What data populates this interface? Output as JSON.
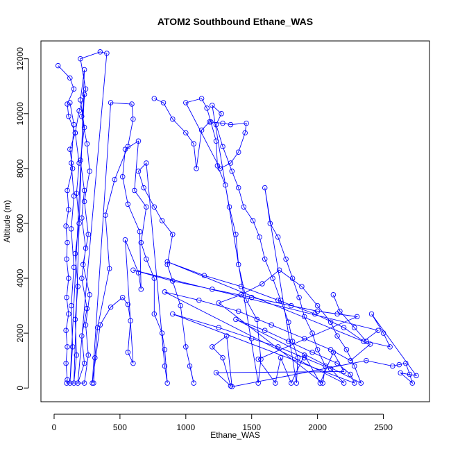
{
  "chart_data": {
    "type": "scatter",
    "title": "ATOM2 Southbound Ethane_WAS",
    "xlabel": "Ethane_WAS",
    "ylabel": "Altitude (m)",
    "xlim": [
      -100,
      2850
    ],
    "ylim": [
      -500,
      12650
    ],
    "x_ticks": [
      0,
      500,
      1000,
      1500,
      2000,
      2500
    ],
    "y_ticks": [
      0,
      2000,
      4000,
      6000,
      8000,
      10000,
      12000
    ],
    "x_tick_labels": [
      "0",
      "500",
      "1000",
      "1500",
      "2000",
      "2500"
    ],
    "y_tick_labels": [
      "0",
      "2000",
      "4000",
      "6000",
      "8000",
      "10000",
      "12000"
    ],
    "grid": false,
    "legend": "none",
    "marker": "open-circle",
    "connected": true,
    "color": "#0000ff",
    "series": [
      {
        "values": [
          [
            30,
            11750
          ],
          [
            120,
            11300
          ],
          [
            150,
            10900
          ],
          [
            100,
            10350
          ],
          [
            110,
            9900
          ],
          [
            160,
            9300
          ],
          [
            120,
            8700
          ],
          [
            140,
            8000
          ],
          [
            100,
            7200
          ],
          [
            110,
            6500
          ],
          [
            90,
            5900
          ],
          [
            100,
            5300
          ],
          [
            95,
            4700
          ],
          [
            110,
            4000
          ],
          [
            95,
            3300
          ],
          [
            110,
            2700
          ],
          [
            90,
            2100
          ],
          [
            100,
            1500
          ],
          [
            90,
            900
          ],
          [
            100,
            300
          ],
          [
            95,
            180
          ],
          [
            230,
            180
          ],
          [
            260,
            1200
          ],
          [
            240,
            2300
          ],
          [
            270,
            3400
          ],
          [
            220,
            4500
          ],
          [
            260,
            5600
          ],
          [
            230,
            6800
          ],
          [
            270,
            7900
          ],
          [
            250,
            8900
          ],
          [
            210,
            9900
          ],
          [
            240,
            10900
          ],
          [
            200,
            12000
          ],
          [
            350,
            12250
          ],
          [
            400,
            12200
          ],
          [
            180,
            180
          ],
          [
            230,
            900
          ],
          [
            210,
            1900
          ],
          [
            250,
            2900
          ],
          [
            210,
            4000
          ],
          [
            240,
            5100
          ],
          [
            210,
            6200
          ],
          [
            230,
            7200
          ],
          [
            200,
            8300
          ],
          [
            230,
            9500
          ],
          [
            200,
            10500
          ],
          [
            230,
            11600
          ],
          [
            150,
            180
          ],
          [
            170,
            1200
          ],
          [
            160,
            2500
          ],
          [
            180,
            3700
          ],
          [
            160,
            4900
          ],
          [
            190,
            6000
          ],
          [
            170,
            7100
          ],
          [
            190,
            8200
          ],
          [
            160,
            9300
          ],
          [
            190,
            10100
          ],
          [
            230,
            10700
          ],
          [
            120,
            180
          ],
          [
            140,
            1500
          ],
          [
            130,
            3000
          ],
          [
            150,
            4400
          ],
          [
            130,
            5800
          ],
          [
            150,
            7000
          ],
          [
            130,
            8200
          ],
          [
            150,
            9600
          ],
          [
            120,
            10400
          ]
        ]
      },
      {
        "values": [
          [
            300,
            180
          ],
          [
            310,
            1100
          ],
          [
            330,
            2200
          ],
          [
            420,
            4350
          ],
          [
            390,
            6300
          ],
          [
            460,
            7600
          ],
          [
            560,
            8800
          ],
          [
            600,
            9800
          ],
          [
            590,
            10350
          ],
          [
            430,
            10400
          ],
          [
            290,
            180
          ],
          [
            350,
            2300
          ],
          [
            430,
            2950
          ],
          [
            520,
            3300
          ],
          [
            560,
            3050
          ],
          [
            580,
            2450
          ],
          [
            560,
            1300
          ],
          [
            600,
            900
          ],
          [
            540,
            5400
          ],
          [
            640,
            4200
          ],
          [
            660,
            3600
          ],
          [
            650,
            5700
          ],
          [
            560,
            6700
          ],
          [
            520,
            7700
          ],
          [
            540,
            8700
          ],
          [
            640,
            9000
          ],
          [
            610,
            7200
          ],
          [
            700,
            6600
          ],
          [
            660,
            5300
          ],
          [
            700,
            4700
          ],
          [
            760,
            4000
          ],
          [
            760,
            2700
          ],
          [
            820,
            2000
          ],
          [
            840,
            1400
          ],
          [
            860,
            180
          ],
          [
            840,
            800
          ],
          [
            700,
            8200
          ],
          [
            640,
            7900
          ],
          [
            680,
            7300
          ],
          [
            760,
            6600
          ],
          [
            820,
            6100
          ],
          [
            900,
            5600
          ],
          [
            860,
            4500
          ],
          [
            960,
            3000
          ],
          [
            1000,
            1500
          ],
          [
            1060,
            180
          ],
          [
            1030,
            800
          ]
        ]
      },
      {
        "values": [
          [
            760,
            10550
          ],
          [
            830,
            10400
          ],
          [
            900,
            9800
          ],
          [
            1000,
            9300
          ],
          [
            1060,
            8900
          ],
          [
            1080,
            8000
          ],
          [
            1120,
            9400
          ],
          [
            1180,
            9700
          ],
          [
            1280,
            9650
          ],
          [
            1340,
            9600
          ],
          [
            1460,
            9650
          ],
          [
            1450,
            9300
          ],
          [
            1400,
            8600
          ],
          [
            1340,
            8200
          ],
          [
            1260,
            8000
          ],
          [
            1000,
            10400
          ],
          [
            1120,
            10550
          ],
          [
            1160,
            10200
          ],
          [
            1190,
            9700
          ],
          [
            1230,
            9000
          ],
          [
            1240,
            8100
          ],
          [
            1300,
            7400
          ],
          [
            1330,
            6600
          ],
          [
            1380,
            5600
          ],
          [
            1400,
            4500
          ],
          [
            1460,
            3200
          ],
          [
            1540,
            2500
          ],
          [
            1570,
            1050
          ],
          [
            1550,
            180
          ],
          [
            1200,
            10300
          ],
          [
            1270,
            10000
          ],
          [
            1230,
            9600
          ],
          [
            1280,
            8800
          ],
          [
            1350,
            7900
          ],
          [
            1400,
            7300
          ],
          [
            1440,
            6600
          ],
          [
            1510,
            6100
          ],
          [
            1560,
            5500
          ],
          [
            1600,
            4700
          ],
          [
            1660,
            4000
          ],
          [
            1720,
            3200
          ],
          [
            1780,
            2400
          ],
          [
            1810,
            1700
          ],
          [
            1850,
            1100
          ],
          [
            1840,
            180
          ],
          [
            1600,
            7300
          ],
          [
            1640,
            6000
          ],
          [
            1700,
            5500
          ],
          [
            1760,
            4700
          ],
          [
            1810,
            4000
          ],
          [
            1860,
            3300
          ],
          [
            1900,
            2600
          ],
          [
            1960,
            2000
          ],
          [
            2000,
            1400
          ],
          [
            2060,
            800
          ],
          [
            2040,
            180
          ],
          [
            1250,
            3100
          ],
          [
            1420,
            3400
          ],
          [
            1580,
            3800
          ],
          [
            1710,
            4300
          ],
          [
            1880,
            3700
          ],
          [
            2000,
            3000
          ],
          [
            2100,
            2400
          ],
          [
            2150,
            1900
          ],
          [
            2220,
            1400
          ],
          [
            2280,
            800
          ],
          [
            2330,
            180
          ],
          [
            1380,
            2500
          ],
          [
            1600,
            2100
          ],
          [
            1780,
            1700
          ],
          [
            1960,
            1300
          ],
          [
            2150,
            900
          ],
          [
            2250,
            500
          ],
          [
            2280,
            180
          ],
          [
            900,
            2700
          ],
          [
            1250,
            2200
          ],
          [
            1500,
            1800
          ],
          [
            1700,
            1500
          ],
          [
            1900,
            1100
          ],
          [
            2100,
            700
          ],
          [
            2200,
            180
          ],
          [
            840,
            3500
          ],
          [
            1100,
            3200
          ],
          [
            1400,
            2800
          ],
          [
            1650,
            2300
          ],
          [
            1900,
            1800
          ],
          [
            2100,
            1400
          ],
          [
            2250,
            1000
          ],
          [
            2400,
            1600
          ],
          [
            860,
            4600
          ],
          [
            1140,
            4100
          ],
          [
            1420,
            3700
          ],
          [
            1700,
            3200
          ],
          [
            1980,
            2700
          ],
          [
            2200,
            2200
          ],
          [
            2350,
            1700
          ],
          [
            2460,
            2100
          ],
          [
            600,
            4300
          ],
          [
            900,
            3900
          ],
          [
            1200,
            3600
          ],
          [
            1500,
            3300
          ],
          [
            1800,
            3000
          ],
          [
            2000,
            2800
          ],
          [
            2150,
            2700
          ],
          [
            2300,
            2600
          ],
          [
            1550,
            1050
          ],
          [
            1680,
            180
          ],
          [
            1720,
            1100
          ],
          [
            1800,
            180
          ],
          [
            1900,
            1200
          ],
          [
            2020,
            180
          ],
          [
            2120,
            1300
          ],
          [
            2200,
            600
          ],
          [
            1230,
            560
          ],
          [
            1340,
            80
          ],
          [
            1280,
            1100
          ],
          [
            1200,
            1500
          ],
          [
            1310,
            1900
          ],
          [
            1350,
            50
          ],
          [
            2370,
            1000
          ],
          [
            2570,
            800
          ],
          [
            2620,
            850
          ],
          [
            2670,
            900
          ],
          [
            2700,
            500
          ],
          [
            2720,
            180
          ],
          [
            2630,
            550
          ],
          [
            2750,
            450
          ],
          [
            2410,
            2700
          ],
          [
            2500,
            2000
          ],
          [
            2550,
            1500
          ],
          [
            2370,
            1700
          ],
          [
            2280,
            2200
          ],
          [
            2170,
            2800
          ],
          [
            2120,
            3400
          ]
        ]
      }
    ]
  }
}
